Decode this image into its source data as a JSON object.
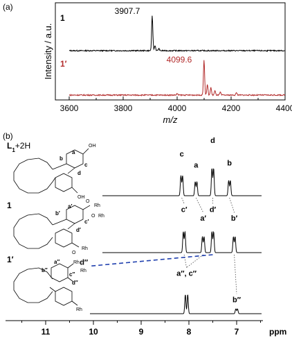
{
  "chart_data": [
    {
      "type": "line",
      "panel_label": "(a)",
      "xlabel": "m/z",
      "ylabel": "Intensity / a.u.",
      "xlim": [
        3600,
        4400
      ],
      "x_ticks": [
        "3600",
        "3800",
        "4000",
        "4200",
        "4400"
      ],
      "grid": false,
      "series": [
        {
          "name": "1",
          "color": "#000000",
          "peak_label": "3907.7",
          "peaks": [
            {
              "x": 3907.7,
              "y": 1.0
            },
            {
              "x": 3918,
              "y": 0.15
            },
            {
              "x": 3932,
              "y": 0.06
            }
          ]
        },
        {
          "name": "1′",
          "color": "#b22a2a",
          "peak_label": "4099.6",
          "peaks": [
            {
              "x": 4099.6,
              "y": 1.0
            },
            {
              "x": 4112,
              "y": 0.3
            },
            {
              "x": 4125,
              "y": 0.22
            },
            {
              "x": 4140,
              "y": 0.12
            },
            {
              "x": 4160,
              "y": 0.08
            },
            {
              "x": 4220,
              "y": 0.07
            },
            {
              "x": 4000,
              "y": 0.04
            }
          ]
        }
      ]
    },
    {
      "type": "line",
      "panel_label": "(b)",
      "xlabel": "ppm",
      "xlim": [
        12,
        6.5
      ],
      "x_ticks": [
        "11",
        "10",
        "9",
        "8",
        "7"
      ],
      "spectra": [
        {
          "name": "L1+2H",
          "compound": {
            "base": "L",
            "sub": "1",
            "rest": "+2H"
          },
          "peaks": [
            {
              "label": "c",
              "ppm": 8.15,
              "height": 0.73
            },
            {
              "label": "a",
              "ppm": 7.85,
              "height": 0.51
            },
            {
              "label": "d",
              "ppm": 7.5,
              "height": 1.0
            },
            {
              "label": "b",
              "ppm": 7.15,
              "height": 0.55
            }
          ]
        },
        {
          "name": "1",
          "structure_labels": [
            "a′",
            "b′",
            "c′",
            "d′"
          ],
          "peaks": [
            {
              "label": "c′",
              "ppm": 8.1,
              "height": 0.72
            },
            {
              "label": "a′",
              "ppm": 7.7,
              "height": 0.55
            },
            {
              "label": "d′",
              "ppm": 7.5,
              "height": 0.72
            },
            {
              "label": "b′",
              "ppm": 7.05,
              "height": 0.55
            }
          ]
        },
        {
          "name": "1′",
          "structure_labels": [
            "a′′",
            "b′′",
            "c′′",
            "d′′"
          ],
          "peaks": [
            {
              "label": "d′′",
              "ppm": 10.2,
              "height": 0.95
            },
            {
              "label": "a′′, c′′",
              "ppm": 8.05,
              "height": 0.72
            },
            {
              "label": "b′′",
              "ppm": 7.0,
              "height": 0.18
            }
          ]
        }
      ],
      "correlations": [
        {
          "from": "c",
          "to": "c′"
        },
        {
          "from": "a",
          "to": "a′"
        },
        {
          "from": "d",
          "to": "d′"
        },
        {
          "from": "b",
          "to": "b′"
        },
        {
          "from": "c′",
          "to": "a′′, c′′"
        },
        {
          "from": "a′",
          "to": "a′′, c′′"
        },
        {
          "from": "b′",
          "to": "b′′"
        },
        {
          "from": "d′",
          "to": "d′′",
          "style": "dashed-blue"
        }
      ],
      "structure_text": {
        "acid": "OH",
        "carbonyl": "O",
        "rhodium": "Rh"
      }
    }
  ]
}
